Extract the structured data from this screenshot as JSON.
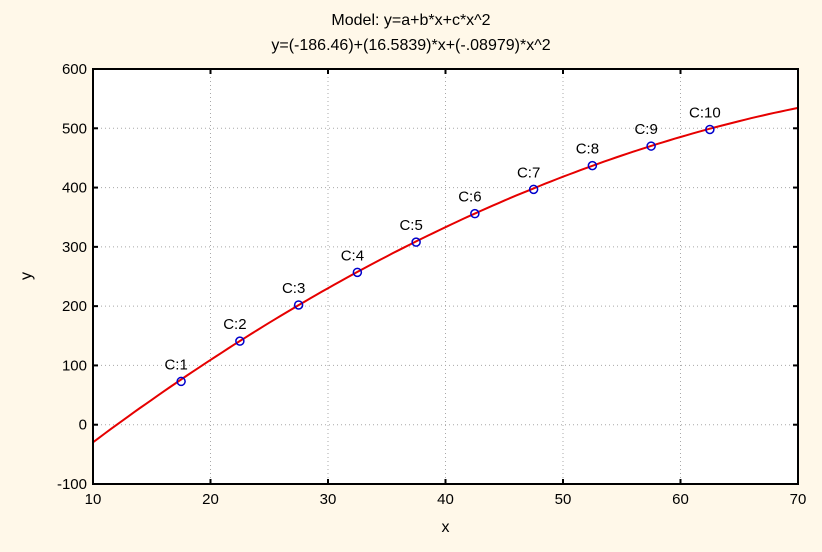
{
  "chart_data": {
    "type": "scatter",
    "title": "Model: y=a+b*x+c*x^2",
    "subtitle": "y=(-186.46)+(16.5839)*x+(-.08979)*x^2",
    "xlabel": "x",
    "ylabel": "y",
    "xlim": [
      10,
      70
    ],
    "ylim": [
      -100,
      600
    ],
    "x_ticks": [
      10,
      20,
      30,
      40,
      50,
      60,
      70
    ],
    "y_ticks": [
      -100,
      0,
      100,
      200,
      300,
      400,
      500,
      600
    ],
    "grid": true,
    "legend_position": "none",
    "points": [
      {
        "label": "C:1",
        "x": 17.5,
        "y": 73
      },
      {
        "label": "C:2",
        "x": 22.5,
        "y": 141
      },
      {
        "label": "C:3",
        "x": 27.5,
        "y": 202
      },
      {
        "label": "C:4",
        "x": 32.5,
        "y": 257
      },
      {
        "label": "C:5",
        "x": 37.5,
        "y": 308
      },
      {
        "label": "C:6",
        "x": 42.5,
        "y": 356
      },
      {
        "label": "C:7",
        "x": 47.5,
        "y": 397
      },
      {
        "label": "C:8",
        "x": 52.5,
        "y": 437
      },
      {
        "label": "C:9",
        "x": 57.5,
        "y": 470
      },
      {
        "label": "C:10",
        "x": 62.5,
        "y": 498
      }
    ],
    "fit_curve": {
      "a": -186.46,
      "b": 16.5839,
      "c": -0.08979,
      "x_start": 10,
      "x_end": 70
    },
    "colors": {
      "curve": "#e60000",
      "marker": "#0000cc",
      "grid": "#a8a8a8",
      "axis": "#000000",
      "background": "#fff8e9",
      "plot_background": "#ffffff",
      "text": "#000000"
    }
  }
}
